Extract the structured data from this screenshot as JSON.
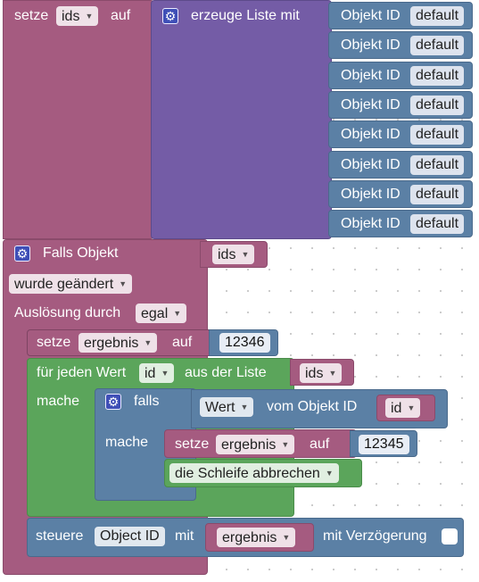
{
  "set_ids": {
    "keyword": "setze",
    "variable": "ids",
    "to": "auf"
  },
  "create_list": {
    "label": "erzeuge Liste mit",
    "items": [
      {
        "label": "Objekt ID",
        "value": "default"
      },
      {
        "label": "Objekt ID",
        "value": "default"
      },
      {
        "label": "Objekt ID",
        "value": "default"
      },
      {
        "label": "Objekt ID",
        "value": "default"
      },
      {
        "label": "Objekt ID",
        "value": "default"
      },
      {
        "label": "Objekt ID",
        "value": "default"
      },
      {
        "label": "Objekt ID",
        "value": "default"
      },
      {
        "label": "Objekt ID",
        "value": "default"
      }
    ]
  },
  "trigger": {
    "label": "Falls Objekt",
    "variable": "ids",
    "condition": "wurde geändert",
    "by_label": "Auslösung durch",
    "by_value": "egal"
  },
  "set_ergebnis_1": {
    "keyword": "setze",
    "variable": "ergebnis",
    "to": "auf",
    "value": "12346"
  },
  "foreach": {
    "label": "für jeden Wert",
    "variable": "id",
    "from_label": "aus der Liste",
    "list_variable": "ids",
    "do_label": "mache"
  },
  "if_block": {
    "label": "falls",
    "value_dropdown": "Wert",
    "of_label": "vom Objekt ID",
    "id_variable": "id",
    "do_label": "mache"
  },
  "set_ergebnis_2": {
    "keyword": "setze",
    "variable": "ergebnis",
    "to": "auf",
    "value": "12345"
  },
  "break_loop": {
    "label": "die Schleife abbrechen"
  },
  "control": {
    "label": "steuere",
    "object_field": "Object ID",
    "with_label": "mit",
    "variable": "ergebnis",
    "delay_label": "mit Verzögerung"
  },
  "colors": {
    "variables": "#a55b80",
    "lists": "#745ca6",
    "objects": "#5b80a5",
    "loops": "#5ba55b"
  }
}
